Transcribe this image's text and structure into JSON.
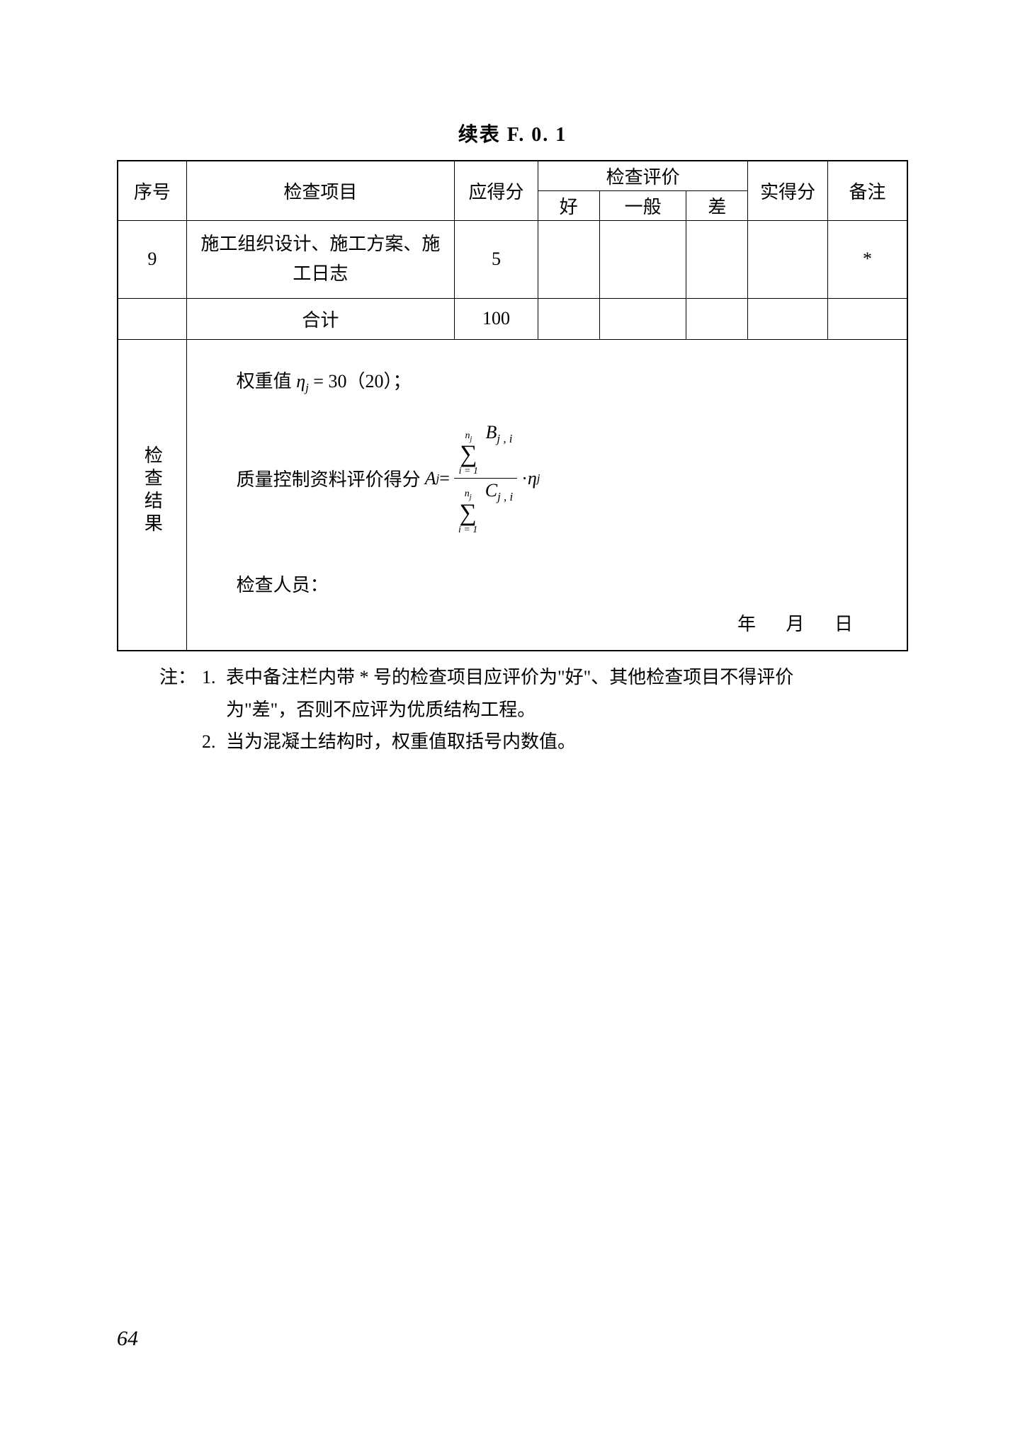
{
  "title": "续表 F. 0. 1",
  "headers": {
    "seq": "序号",
    "item": "检查项目",
    "maxScore": "应得分",
    "evalGroup": "检查评价",
    "good": "好",
    "avg": "一般",
    "bad": "差",
    "actual": "实得分",
    "note": "备注"
  },
  "rows": [
    {
      "seq": "9",
      "item": "施工组织设计、施工方案、施工日志",
      "maxScore": "5",
      "good": "",
      "avg": "",
      "bad": "",
      "actual": "",
      "note": "*"
    }
  ],
  "total": {
    "label": "合计",
    "maxScore": "100",
    "good": "",
    "avg": "",
    "bad": "",
    "actual": "",
    "note": ""
  },
  "results": {
    "sectionLabel": "检查结果",
    "weightPrefix": "权重值 ",
    "weightVar": "η",
    "weightSub": "j",
    "weightValue": " = 30（20）；",
    "formulaLabel": "质量控制资料评价得分 ",
    "A": "A",
    "Asub": "j",
    "eq": " = ",
    "sumTop": "n",
    "sumTopSub": "j",
    "sumBot": "i = 1",
    "B": "B",
    "Bsub": "j , i",
    "C": "C",
    "Csub": "j , i",
    "dot": " · ",
    "eta": "η",
    "etaSub": "j",
    "inspector": "检查人员：",
    "date": "年 月 日"
  },
  "notes": {
    "label": "注：",
    "n1a": "表中备注栏内带 * 号的检查项目应评价为\"好\"、其他检查项目不得评价",
    "n1b": "为\"差\"，否则不应评为优质结构工程。",
    "n2": "当为混凝土结构时，权重值取括号内数值。"
  },
  "pageNumber": "64"
}
